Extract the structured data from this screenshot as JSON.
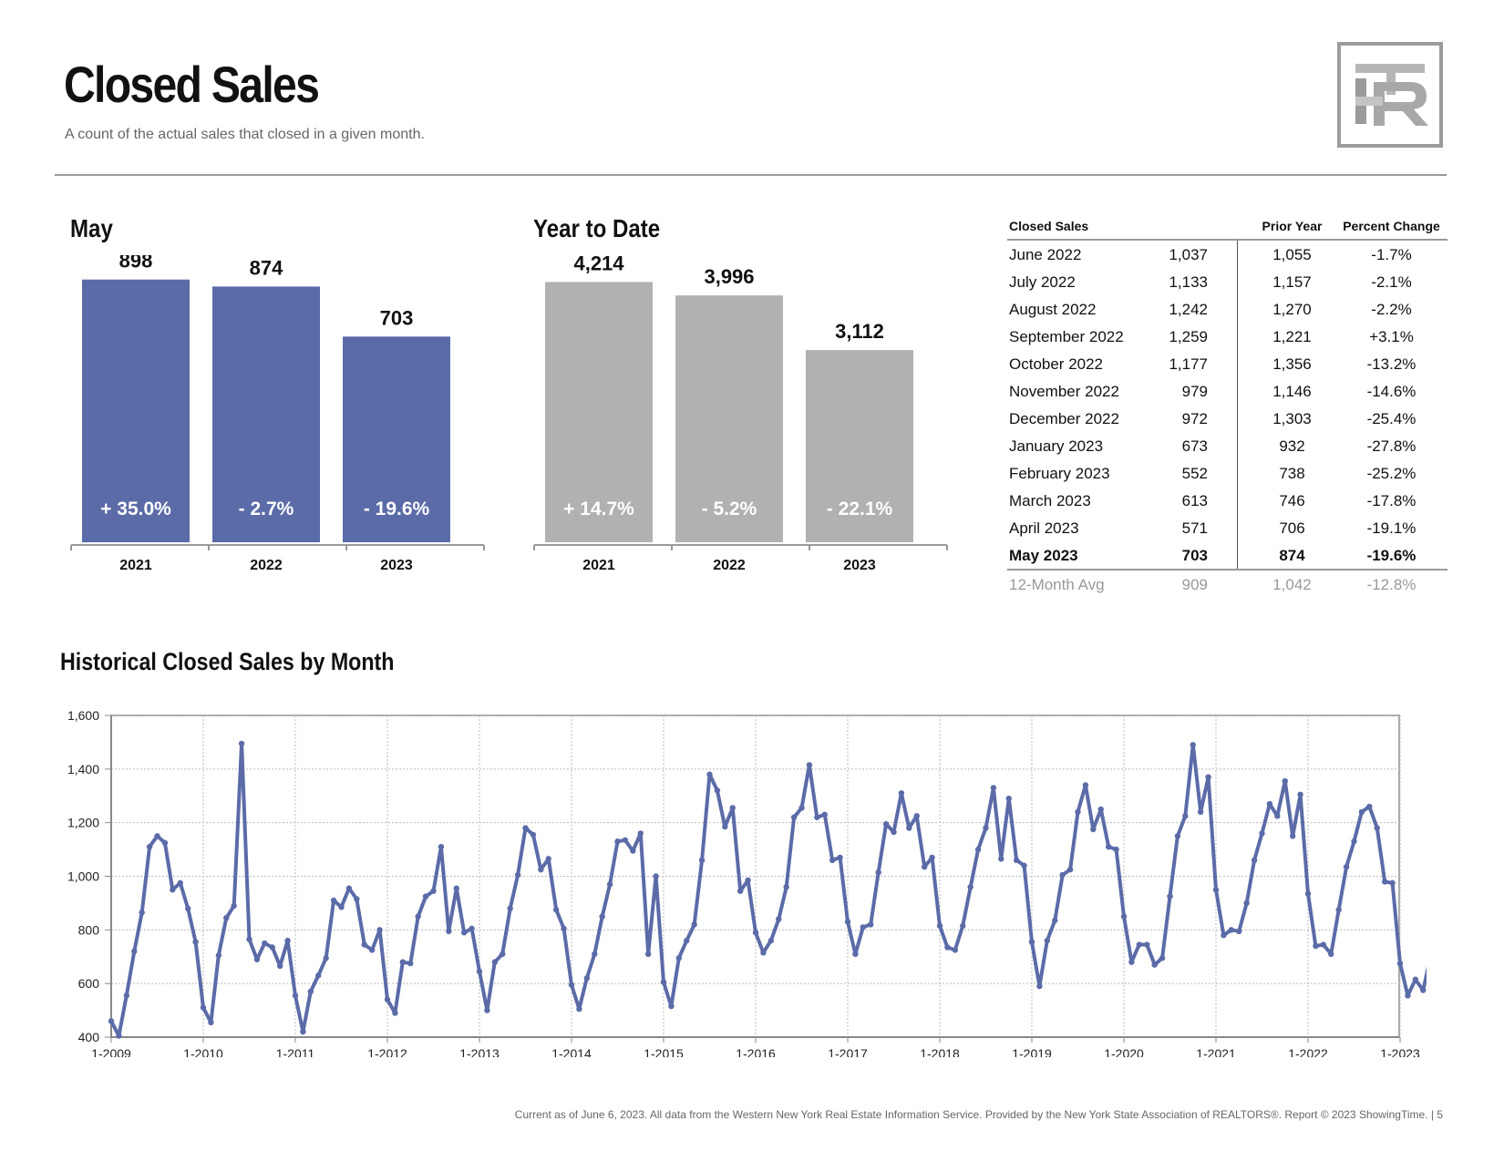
{
  "header": {
    "title": "Closed Sales",
    "subtitle": "A count of the actual sales that closed in a given month."
  },
  "colors": {
    "blue": "#5b6ba8",
    "gray": "#b0b1b1",
    "rule": "#9a9a9a",
    "muted": "#999999"
  },
  "logo": {
    "icon": "rtr-monogram-logo"
  },
  "chart_data": [
    {
      "type": "bar",
      "title": "May",
      "categories": [
        "2021",
        "2022",
        "2023"
      ],
      "values": [
        898,
        874,
        703
      ],
      "value_labels": [
        "898",
        "874",
        "703"
      ],
      "change_labels": [
        "+ 35.0%",
        "- 2.7%",
        "- 19.6%"
      ],
      "color": "#5b6ba8",
      "ylim": [
        0,
        950
      ]
    },
    {
      "type": "bar",
      "title": "Year to Date",
      "categories": [
        "2021",
        "2022",
        "2023"
      ],
      "values": [
        4214,
        3996,
        3112
      ],
      "value_labels": [
        "4,214",
        "3,996",
        "3,112"
      ],
      "change_labels": [
        "+ 14.7%",
        "- 5.2%",
        "- 22.1%"
      ],
      "color": "#b0b1b1",
      "ylim": [
        0,
        4500
      ]
    },
    {
      "type": "line",
      "title": "Historical Closed Sales by Month",
      "ylim": [
        400,
        1600
      ],
      "yticks": [
        "400",
        "600",
        "800",
        "1,000",
        "1,200",
        "1,400",
        "1,600"
      ],
      "xticks": [
        "1-2009",
        "1-2010",
        "1-2011",
        "1-2012",
        "1-2013",
        "1-2014",
        "1-2015",
        "1-2016",
        "1-2017",
        "1-2018",
        "1-2019",
        "1-2020",
        "1-2021",
        "1-2022",
        "1-2023"
      ],
      "grid": true,
      "color": "#5b6ba8",
      "start": "1-2009",
      "values": [
        460,
        405,
        555,
        720,
        865,
        1110,
        1150,
        1125,
        950,
        975,
        880,
        755,
        510,
        455,
        705,
        845,
        890,
        1495,
        765,
        690,
        750,
        735,
        665,
        760,
        555,
        420,
        570,
        630,
        695,
        910,
        885,
        955,
        915,
        745,
        725,
        800,
        540,
        490,
        680,
        675,
        850,
        925,
        945,
        1110,
        795,
        955,
        790,
        805,
        645,
        500,
        680,
        710,
        880,
        1005,
        1180,
        1155,
        1025,
        1065,
        875,
        805,
        595,
        505,
        620,
        710,
        850,
        970,
        1130,
        1135,
        1095,
        1160,
        710,
        1000,
        605,
        515,
        695,
        760,
        820,
        1060,
        1380,
        1320,
        1185,
        1255,
        945,
        985,
        790,
        715,
        760,
        840,
        960,
        1220,
        1255,
        1415,
        1220,
        1230,
        1060,
        1070,
        830,
        710,
        810,
        820,
        1015,
        1195,
        1165,
        1310,
        1180,
        1225,
        1035,
        1070,
        815,
        735,
        725,
        815,
        960,
        1100,
        1180,
        1330,
        1065,
        1290,
        1060,
        1040,
        755,
        590,
        760,
        835,
        1005,
        1025,
        1240,
        1340,
        1175,
        1250,
        1110,
        1100,
        850,
        680,
        745,
        745,
        670,
        695,
        925,
        1150,
        1225,
        1490,
        1240,
        1370,
        950,
        780,
        800,
        795,
        900,
        1060,
        1160,
        1270,
        1225,
        1355,
        1150,
        1305,
        935,
        740,
        745,
        710,
        875,
        1035,
        1130,
        1240,
        1260,
        1180,
        980,
        975,
        675,
        555,
        615,
        575,
        705
      ]
    }
  ],
  "table": {
    "headers": {
      "label": "Closed Sales",
      "prior": "Prior Year",
      "pct": "Percent Change"
    },
    "rows": [
      {
        "month": "June 2022",
        "current": "1,037",
        "prior": "1,055",
        "pct": "-1.7%"
      },
      {
        "month": "July 2022",
        "current": "1,133",
        "prior": "1,157",
        "pct": "-2.1%"
      },
      {
        "month": "August 2022",
        "current": "1,242",
        "prior": "1,270",
        "pct": "-2.2%"
      },
      {
        "month": "September 2022",
        "current": "1,259",
        "prior": "1,221",
        "pct": "+3.1%"
      },
      {
        "month": "October 2022",
        "current": "1,177",
        "prior": "1,356",
        "pct": "-13.2%"
      },
      {
        "month": "November 2022",
        "current": "979",
        "prior": "1,146",
        "pct": "-14.6%"
      },
      {
        "month": "December 2022",
        "current": "972",
        "prior": "1,303",
        "pct": "-25.4%"
      },
      {
        "month": "January 2023",
        "current": "673",
        "prior": "932",
        "pct": "-27.8%"
      },
      {
        "month": "February 2023",
        "current": "552",
        "prior": "738",
        "pct": "-25.2%"
      },
      {
        "month": "March 2023",
        "current": "613",
        "prior": "746",
        "pct": "-17.8%"
      },
      {
        "month": "April 2023",
        "current": "571",
        "prior": "706",
        "pct": "-19.1%"
      },
      {
        "month": "May 2023",
        "current": "703",
        "prior": "874",
        "pct": "-19.6%"
      }
    ],
    "avg": {
      "month": "12-Month Avg",
      "current": "909",
      "prior": "1,042",
      "pct": "-12.8%"
    }
  },
  "footer": {
    "text": "Current as of June 6, 2023. All data from the Western New York Real Estate Information Service. Provided by the New York State Association of REALTORS®. Report © 2023 ShowingTime.  |  5"
  }
}
